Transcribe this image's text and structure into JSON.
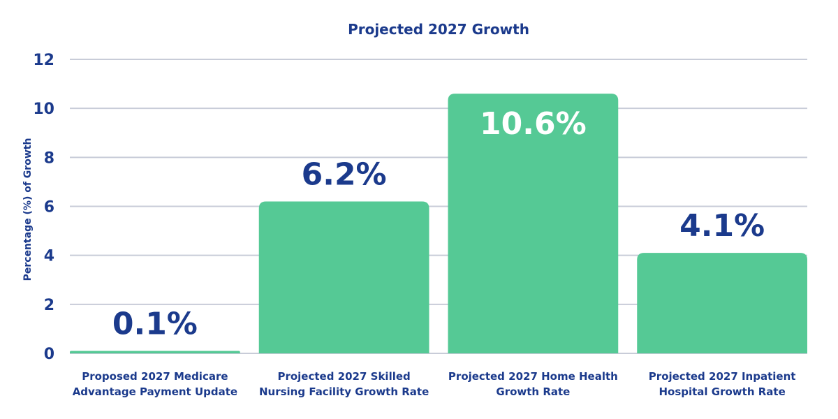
{
  "chart_data": {
    "type": "bar",
    "title": "Projected 2027 Growth",
    "xlabel": "",
    "ylabel": "Percentage (%) of Growth",
    "ylim": [
      0,
      12
    ],
    "yticks": [
      0,
      2,
      4,
      6,
      8,
      10,
      12
    ],
    "grid": true,
    "categories": [
      "Proposed 2027 Medicare Advantage Payment Update",
      "Projected 2027 Skilled Nursing Facility Growth Rate",
      "Projected 2027 Home Health Growth Rate",
      "Projected 2027 Inpatient Hospital Growth Rate"
    ],
    "values": [
      0.1,
      6.2,
      10.6,
      4.1
    ],
    "data_labels": [
      "0.1%",
      "6.2%",
      "10.6%",
      "4.1%"
    ],
    "colors": {
      "bar": "#55c995",
      "text": "#1b3a8c",
      "grid": "#c8ccd8",
      "label_inside": "#ffffff"
    }
  }
}
